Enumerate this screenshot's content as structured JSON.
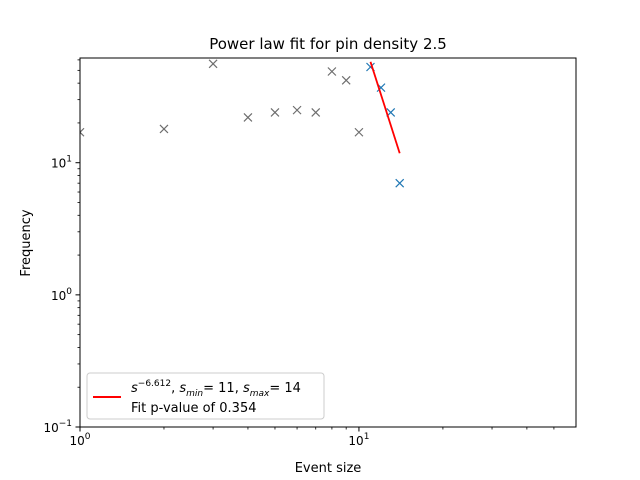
{
  "chart_data": {
    "type": "scatter",
    "title": "Power law fit for pin density 2.5",
    "xlabel": "Event size",
    "ylabel": "Frequency",
    "xscale": "log",
    "yscale": "log",
    "xlim": [
      1,
      60
    ],
    "ylim": [
      0.1,
      62
    ],
    "x_ticks": [
      {
        "value": 1,
        "base": "10",
        "exp": "0"
      },
      {
        "value": 10,
        "base": "10",
        "exp": "1"
      }
    ],
    "y_ticks": [
      {
        "value": 0.1,
        "base": "10",
        "exp": "−1"
      },
      {
        "value": 1,
        "base": "10",
        "exp": "0"
      },
      {
        "value": 10,
        "base": "10",
        "exp": "1"
      }
    ],
    "grid": false,
    "series": [
      {
        "marker": "x",
        "color": "#6e6e6e",
        "points": [
          {
            "x": 1,
            "y": 17
          },
          {
            "x": 2,
            "y": 18
          },
          {
            "x": 3,
            "y": 56
          },
          {
            "x": 4,
            "y": 22
          },
          {
            "x": 5,
            "y": 24
          },
          {
            "x": 6,
            "y": 25
          },
          {
            "x": 7,
            "y": 24
          },
          {
            "x": 8,
            "y": 49
          },
          {
            "x": 9,
            "y": 42
          },
          {
            "x": 10,
            "y": 17
          }
        ]
      },
      {
        "marker": "x",
        "color": "#1f77b4",
        "points": [
          {
            "x": 11,
            "y": 53
          },
          {
            "x": 12,
            "y": 37
          },
          {
            "x": 13,
            "y": 24
          },
          {
            "x": 14,
            "y": 7
          }
        ]
      }
    ],
    "fit_line": {
      "color": "#ff0000",
      "points": [
        {
          "x": 11,
          "y": 58
        },
        {
          "x": 14,
          "y": 11.8
        }
      ]
    },
    "legend": {
      "placement": "lower-left",
      "line1": {
        "base": "s",
        "exp": "−6.612",
        "smin_base": "s",
        "smin_sub": "min",
        "smin_value": "= 11",
        "smax_base": "s",
        "smax_sub": "max",
        "smax_value": "= 14"
      },
      "line2": "Fit p-value of 0.354"
    }
  }
}
